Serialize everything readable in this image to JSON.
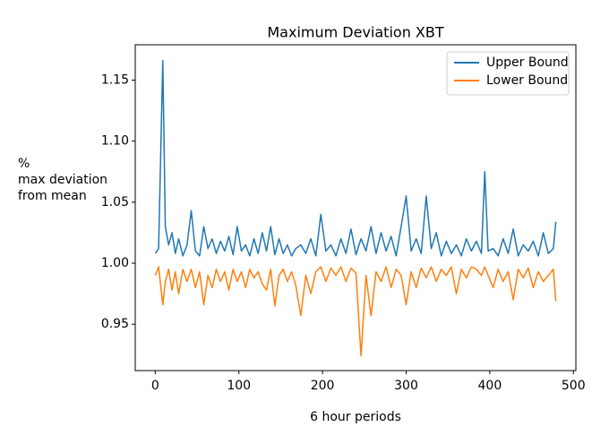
{
  "chart_data": {
    "type": "line",
    "title": "Maximum Deviation XBT",
    "xlabel": "6 hour periods",
    "ylabel": [
      "%",
      "max deviation",
      "from mean"
    ],
    "x": [
      0,
      4,
      9,
      12,
      16,
      20,
      24,
      28,
      33,
      38,
      43,
      48,
      53,
      58,
      63,
      68,
      73,
      78,
      83,
      88,
      93,
      98,
      103,
      108,
      113,
      118,
      123,
      128,
      133,
      138,
      143,
      148,
      153,
      158,
      163,
      168,
      174,
      180,
      186,
      192,
      198,
      204,
      210,
      216,
      222,
      228,
      234,
      240,
      246,
      252,
      258,
      264,
      270,
      276,
      282,
      288,
      294,
      300,
      306,
      312,
      318,
      324,
      330,
      336,
      342,
      348,
      354,
      360,
      366,
      372,
      378,
      384,
      390,
      394,
      398,
      404,
      410,
      416,
      422,
      428,
      434,
      440,
      446,
      452,
      458,
      464,
      470,
      476,
      479
    ],
    "series": [
      {
        "name": "Upper Bound",
        "color": "#1f77b4",
        "values": [
          1.008,
          1.012,
          1.166,
          1.03,
          1.015,
          1.025,
          1.008,
          1.02,
          1.006,
          1.015,
          1.043,
          1.01,
          1.006,
          1.03,
          1.012,
          1.02,
          1.008,
          1.018,
          1.01,
          1.022,
          1.007,
          1.03,
          1.01,
          1.015,
          1.006,
          1.02,
          1.008,
          1.025,
          1.01,
          1.03,
          1.007,
          1.02,
          1.008,
          1.015,
          1.006,
          1.012,
          1.015,
          1.008,
          1.02,
          1.006,
          1.04,
          1.01,
          1.015,
          1.006,
          1.02,
          1.008,
          1.028,
          1.007,
          1.02,
          1.01,
          1.03,
          1.008,
          1.025,
          1.01,
          1.022,
          1.006,
          1.03,
          1.055,
          1.01,
          1.02,
          1.008,
          1.055,
          1.012,
          1.025,
          1.006,
          1.018,
          1.008,
          1.015,
          1.006,
          1.02,
          1.01,
          1.018,
          1.008,
          1.075,
          1.01,
          1.012,
          1.006,
          1.02,
          1.008,
          1.028,
          1.006,
          1.015,
          1.01,
          1.018,
          1.006,
          1.025,
          1.008,
          1.012,
          1.034
        ]
      },
      {
        "name": "Lower Bound",
        "color": "#ff7f0e",
        "values": [
          0.99,
          0.997,
          0.966,
          0.985,
          0.995,
          0.978,
          0.993,
          0.975,
          0.995,
          0.985,
          0.995,
          0.98,
          0.993,
          0.966,
          0.99,
          0.98,
          0.995,
          0.985,
          0.993,
          0.978,
          0.995,
          0.985,
          0.993,
          0.98,
          0.995,
          0.988,
          0.993,
          0.983,
          0.978,
          0.995,
          0.965,
          0.99,
          0.995,
          0.985,
          0.993,
          0.982,
          0.957,
          0.99,
          0.975,
          0.993,
          0.997,
          0.985,
          0.996,
          0.99,
          0.997,
          0.985,
          0.996,
          0.992,
          0.924,
          0.99,
          0.957,
          0.993,
          0.985,
          0.997,
          0.98,
          0.995,
          0.99,
          0.966,
          0.993,
          0.98,
          0.996,
          0.988,
          0.997,
          0.985,
          0.995,
          0.99,
          0.997,
          0.975,
          0.995,
          0.988,
          0.997,
          0.995,
          0.99,
          0.997,
          0.99,
          0.98,
          0.995,
          0.985,
          0.993,
          0.97,
          0.995,
          0.988,
          0.996,
          0.98,
          0.993,
          0.985,
          0.99,
          0.995,
          0.969
        ]
      }
    ],
    "xlim": [
      -23.95,
      502.95
    ],
    "ylim": [
      0.912,
      1.179
    ],
    "xticks": [
      0,
      100,
      200,
      300,
      400,
      500
    ],
    "yticks": [
      0.95,
      {
        "value": 1,
        "label": "1.00"
      },
      1.05,
      {
        "value": 1.1,
        "label": "1.10"
      },
      1.15
    ],
    "legend": "upper right",
    "grid": false
  }
}
